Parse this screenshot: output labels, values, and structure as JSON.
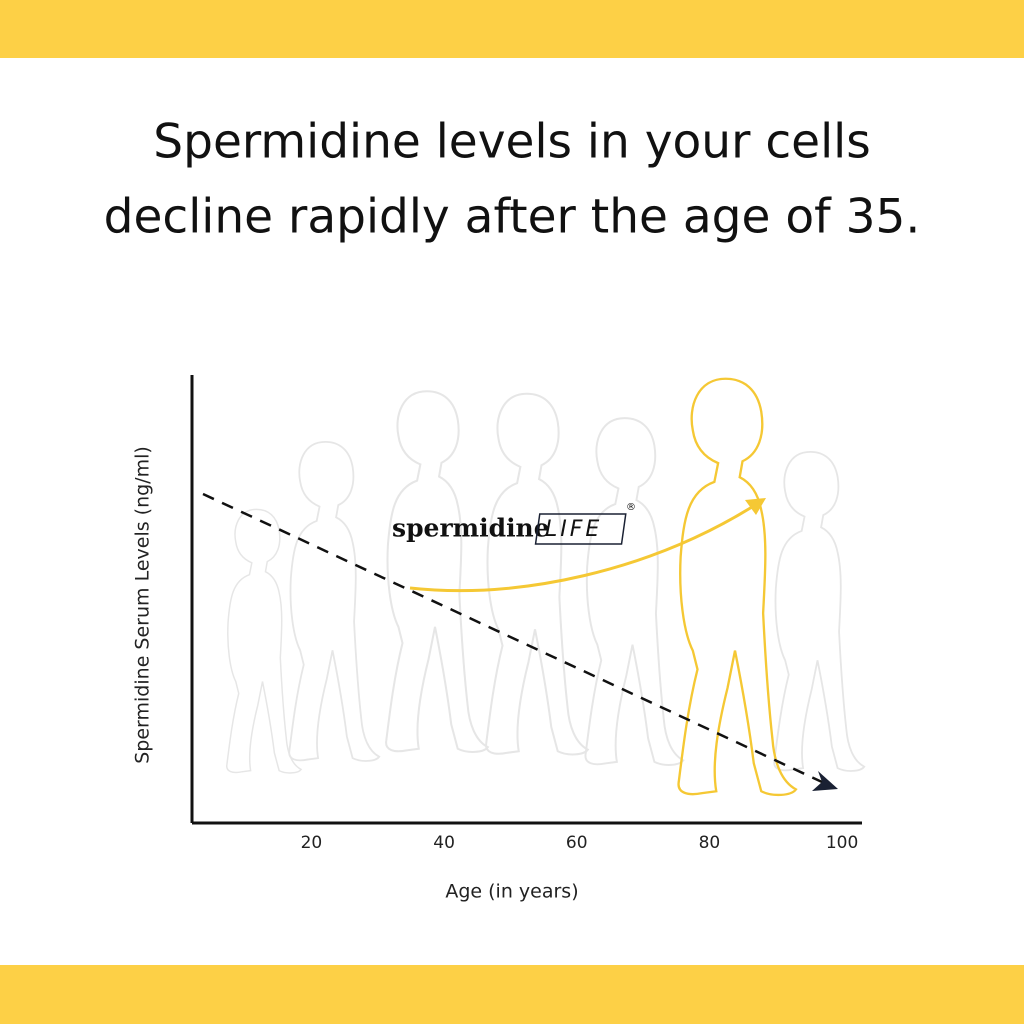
{
  "title_lines": [
    "Spermidine levels in your cells",
    "decline rapidly after the age of 35."
  ],
  "brand": {
    "name": "spermidine",
    "suffix": "LIFE",
    "mark": "®"
  },
  "chart_data": {
    "type": "line",
    "x_label": "Age (in years)",
    "y_label": "Spermidine Serum Levels (ng/ml)",
    "xlim": [
      2,
      103
    ],
    "xticks": [
      20,
      40,
      60,
      80,
      100
    ]
  }
}
